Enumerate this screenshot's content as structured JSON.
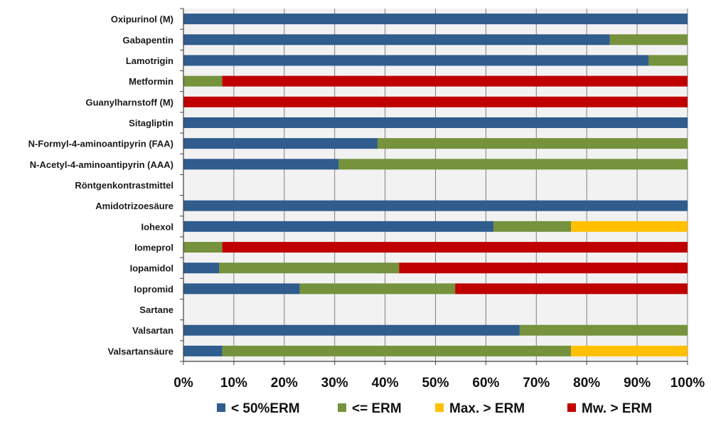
{
  "chart_data": {
    "type": "bar",
    "orientation": "horizontal",
    "stacked": "percent",
    "categories": [
      "Oxipurinol (M)",
      "Gabapentin",
      "Lamotrigin",
      "Metformin",
      "Guanylharnstoff (M)",
      "Sitagliptin",
      "N-Formyl-4-aminoantipyrin (FAA)",
      "N-Acetyl-4-aminoantipyrin (AAA)",
      "Röntgenkontrastmittel",
      "Amidotrizoesäure",
      "Iohexol",
      "Iomeprol",
      "Iopamidol",
      "Iopromid",
      "Sartane",
      "Valsartan",
      "Valsartansäure"
    ],
    "series": [
      {
        "name": "< 50%ERM",
        "color": "#305C8E",
        "values": [
          100,
          84.6,
          92.3,
          0,
          0,
          100,
          38.5,
          30.8,
          0,
          100,
          61.5,
          0,
          7.1,
          23.1,
          0,
          66.7,
          7.7
        ]
      },
      {
        "name": "<= ERM",
        "color": "#76923C",
        "values": [
          0,
          15.4,
          7.7,
          7.7,
          0,
          0,
          61.5,
          69.2,
          0,
          0,
          15.4,
          7.7,
          35.7,
          30.8,
          0,
          33.3,
          69.2
        ]
      },
      {
        "name": "Max. > ERM",
        "color": "#FFC000",
        "values": [
          0,
          0,
          0,
          0,
          0,
          0,
          0,
          0,
          0,
          0,
          23.1,
          0,
          0,
          0,
          0,
          0,
          23.1
        ]
      },
      {
        "name": "Mw. > ERM",
        "color": "#C00000",
        "values": [
          0,
          0,
          0,
          92.3,
          100,
          0,
          0,
          0,
          0,
          0,
          0,
          92.3,
          57.2,
          46.1,
          0,
          0,
          0
        ]
      }
    ],
    "xlim": [
      0,
      100
    ],
    "xticks": [
      "0%",
      "10%",
      "20%",
      "30%",
      "40%",
      "50%",
      "60%",
      "70%",
      "80%",
      "90%",
      "100%"
    ],
    "grid": true,
    "legend_position": "bottom",
    "plot_background": "#F2F2F2"
  }
}
